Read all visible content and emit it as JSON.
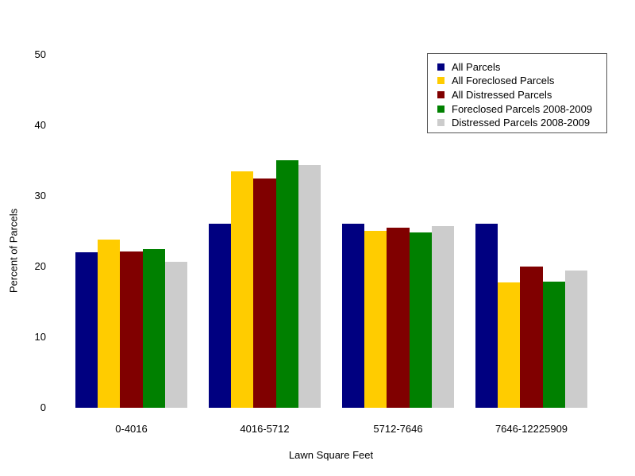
{
  "figure": {
    "background_color": "#ffffff",
    "text_color": "#000000",
    "legend_border_color": "#555555"
  },
  "chart_data": {
    "type": "bar",
    "title": "",
    "xlabel": "Lawn Square Feet",
    "ylabel": "Percent of Parcels",
    "categories": [
      "0-4016",
      "4016-5712",
      "5712-7646",
      "7646-12225909"
    ],
    "series": [
      {
        "name": "All Parcels",
        "color": "#000080",
        "values": [
          22.0,
          26.0,
          26.0,
          26.0
        ]
      },
      {
        "name": "All Foreclosed Parcels",
        "color": "#ffcc00",
        "values": [
          23.8,
          33.5,
          25.0,
          17.7
        ]
      },
      {
        "name": "All Distressed Parcels",
        "color": "#800000",
        "values": [
          22.1,
          32.4,
          25.5,
          20.0
        ]
      },
      {
        "name": "Foreclosed Parcels 2008-2009",
        "color": "#008000",
        "values": [
          22.4,
          35.0,
          24.8,
          17.8
        ]
      },
      {
        "name": "Distressed Parcels 2008-2009",
        "color": "#cccccc",
        "values": [
          20.6,
          34.3,
          25.7,
          19.4
        ]
      }
    ],
    "yticks": [
      0,
      10,
      20,
      30,
      40,
      50
    ],
    "ylim": [
      0,
      50
    ],
    "grid": false,
    "axis_lines": false,
    "legend_position": "top-right"
  }
}
